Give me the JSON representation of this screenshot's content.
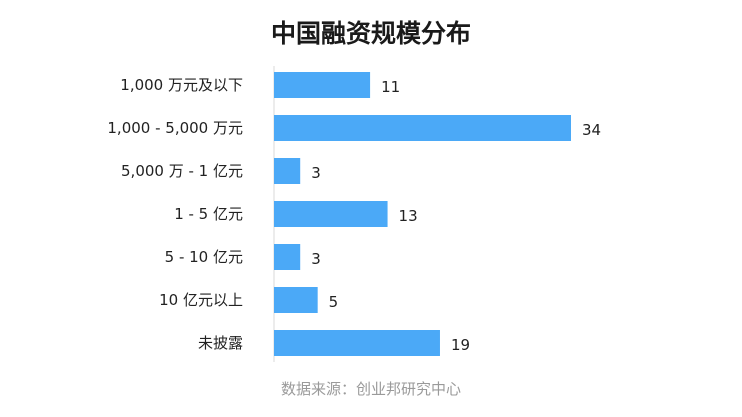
{
  "chart_data": {
    "type": "bar",
    "orientation": "horizontal",
    "title": "中国融资规模分布",
    "categories": [
      "1,000 万元及以下",
      "1,000 - 5,000 万元",
      "5,000 万 - 1 亿元",
      "1 - 5 亿元",
      "5 - 10 亿元",
      "10 亿元以上",
      "未披露"
    ],
    "values": [
      11,
      34,
      3,
      13,
      3,
      5,
      19
    ],
    "xlim": [
      0,
      34
    ],
    "bar_color": "#4BA9F7",
    "grid": false,
    "legend": "none",
    "data_labels": true,
    "source": "数据来源：创业邦研究中心"
  }
}
